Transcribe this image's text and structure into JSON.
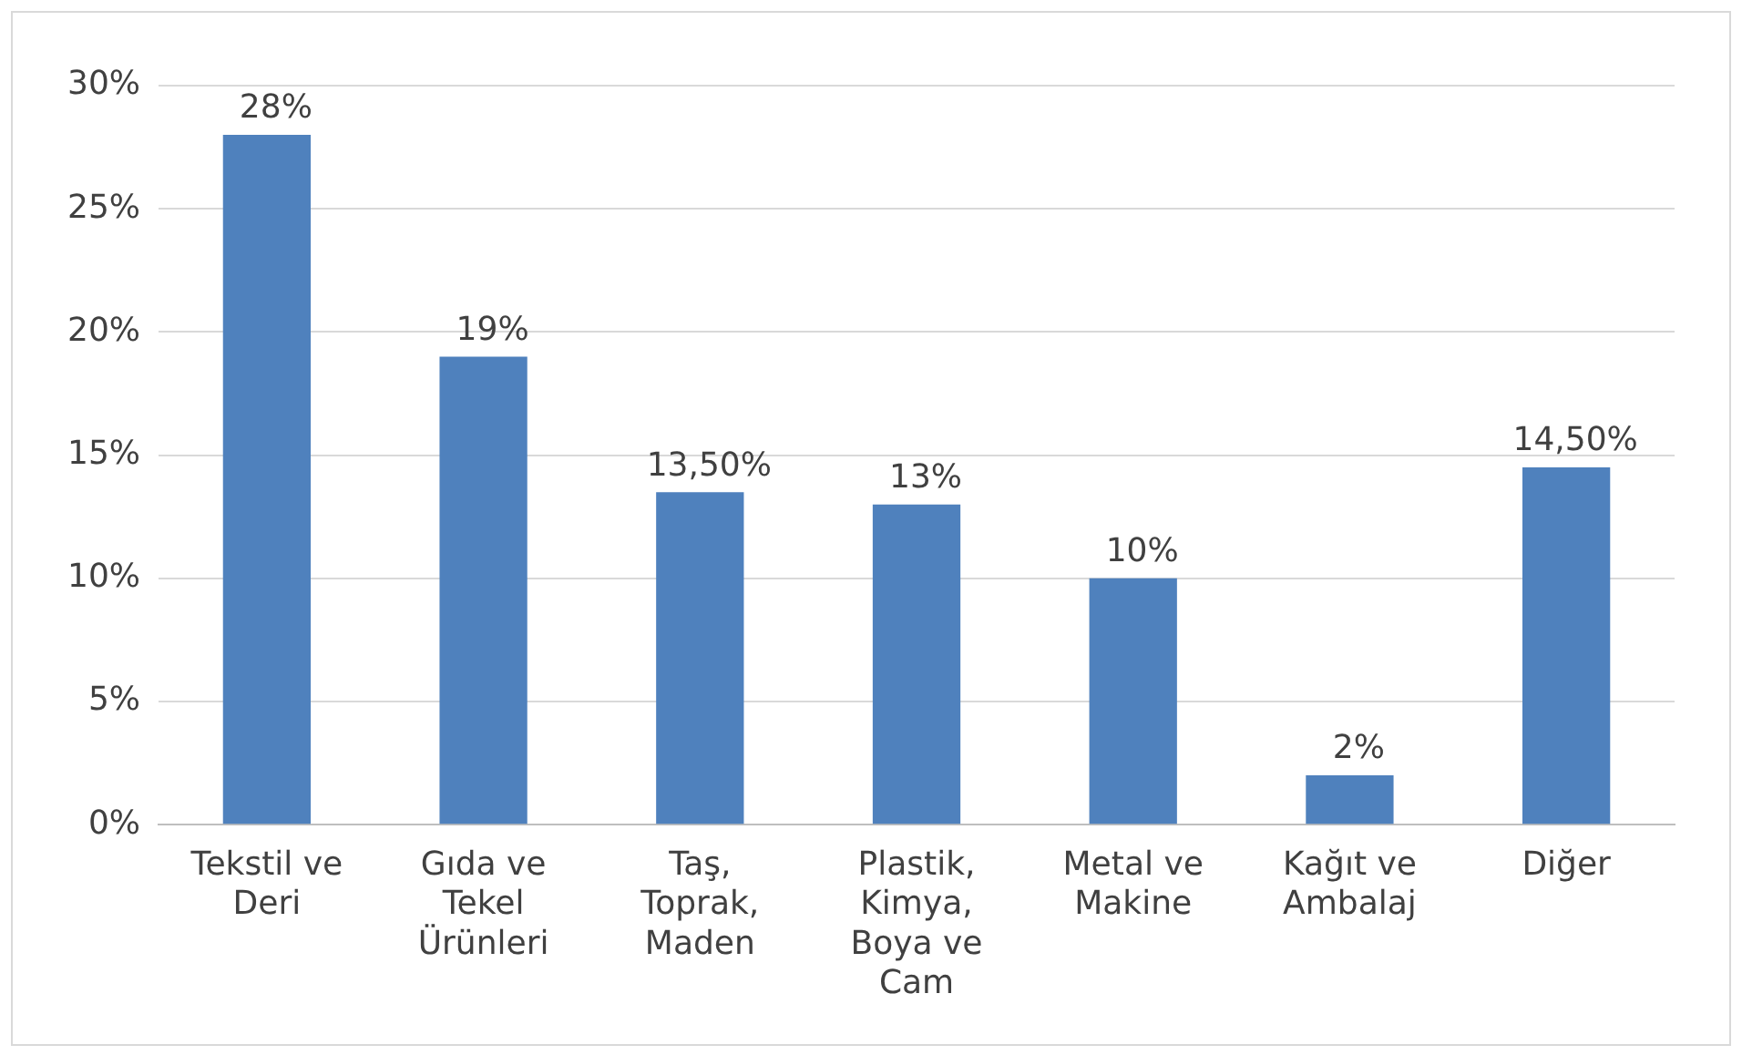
{
  "chart_data": {
    "type": "bar",
    "categories": [
      "Tekstil ve Deri",
      "Gıda ve Tekel Ürünleri",
      "Taş, Toprak, Maden",
      "Plastik, Kimya, Boya ve Cam",
      "Metal ve Makine",
      "Kağıt ve Ambalaj",
      "Diğer"
    ],
    "values": [
      28,
      19,
      13.5,
      13,
      10,
      2,
      14.5
    ],
    "value_labels": [
      "28%",
      "19%",
      "13,50%",
      "13%",
      "10%",
      "2%",
      "14,50%"
    ],
    "color": "#4f81bd",
    "ylim": [
      0,
      30
    ],
    "yticks": [
      {
        "value": 0,
        "label": "0%"
      },
      {
        "value": 5,
        "label": "5%"
      },
      {
        "value": 10,
        "label": "10%"
      },
      {
        "value": 15,
        "label": "15%"
      },
      {
        "value": 20,
        "label": "20%"
      },
      {
        "value": 25,
        "label": "25%"
      },
      {
        "value": 30,
        "label": "30%"
      }
    ],
    "grid": "y",
    "legend": false
  }
}
